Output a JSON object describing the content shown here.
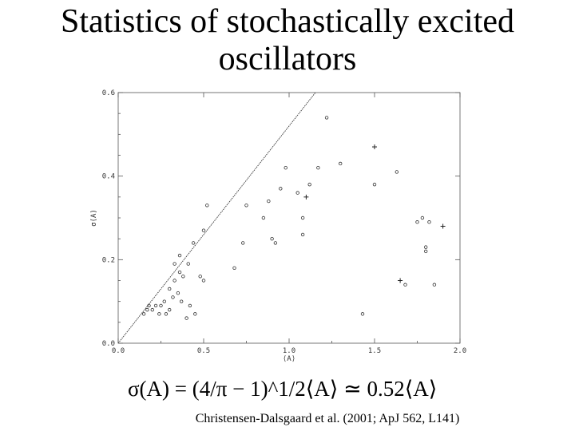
{
  "slide": {
    "title_line1": "Statistics of stochastically excited",
    "title_line2": "oscillators",
    "formula": "σ(A) = (4/π − 1)^1/2⟨A⟩ ≃ 0.52⟨A⟩",
    "citation": "Christensen-Dalsgaard et al. (2001; ApJ 562, L141)"
  },
  "chart_data": {
    "type": "scatter",
    "title": "",
    "xlabel": "⟨A⟩",
    "ylabel": "σ(A)",
    "xlim": [
      0,
      2
    ],
    "ylim": [
      0,
      0.6
    ],
    "x_ticks": [
      "0.0",
      "0.5",
      "1.0",
      "1.5",
      "2.0"
    ],
    "y_ticks": [
      "0.0",
      "0.2",
      "0.4",
      "0.6"
    ],
    "grid": false,
    "reference_line": {
      "slope": 0.52,
      "intercept": 0
    },
    "series": [
      {
        "marker": "open-circle",
        "points": [
          [
            0.15,
            0.07
          ],
          [
            0.17,
            0.08
          ],
          [
            0.18,
            0.09
          ],
          [
            0.2,
            0.08
          ],
          [
            0.22,
            0.09
          ],
          [
            0.24,
            0.07
          ],
          [
            0.25,
            0.09
          ],
          [
            0.27,
            0.1
          ],
          [
            0.28,
            0.07
          ],
          [
            0.3,
            0.08
          ],
          [
            0.32,
            0.11
          ],
          [
            0.3,
            0.13
          ],
          [
            0.33,
            0.15
          ],
          [
            0.35,
            0.12
          ],
          [
            0.36,
            0.17
          ],
          [
            0.38,
            0.16
          ],
          [
            0.37,
            0.1
          ],
          [
            0.4,
            0.06
          ],
          [
            0.42,
            0.09
          ],
          [
            0.45,
            0.07
          ],
          [
            0.48,
            0.16
          ],
          [
            0.5,
            0.15
          ],
          [
            0.41,
            0.19
          ],
          [
            0.44,
            0.24
          ],
          [
            0.33,
            0.19
          ],
          [
            0.36,
            0.21
          ],
          [
            0.5,
            0.27
          ],
          [
            0.52,
            0.33
          ],
          [
            0.68,
            0.18
          ],
          [
            0.73,
            0.24
          ],
          [
            0.75,
            0.33
          ],
          [
            0.85,
            0.3
          ],
          [
            0.88,
            0.34
          ],
          [
            0.9,
            0.25
          ],
          [
            0.95,
            0.37
          ],
          [
            0.98,
            0.42
          ],
          [
            0.92,
            0.24
          ],
          [
            1.05,
            0.36
          ],
          [
            1.08,
            0.26
          ],
          [
            1.08,
            0.3
          ],
          [
            1.12,
            0.38
          ],
          [
            1.17,
            0.42
          ],
          [
            1.22,
            0.54
          ],
          [
            1.3,
            0.43
          ],
          [
            1.43,
            0.07
          ],
          [
            1.5,
            0.38
          ],
          [
            1.63,
            0.41
          ],
          [
            1.75,
            0.29
          ],
          [
            1.78,
            0.3
          ],
          [
            1.8,
            0.23
          ],
          [
            1.82,
            0.29
          ],
          [
            1.85,
            0.14
          ],
          [
            1.68,
            0.14
          ],
          [
            1.8,
            0.22
          ]
        ]
      },
      {
        "marker": "plus",
        "points": [
          [
            1.1,
            0.35
          ],
          [
            1.5,
            0.47
          ],
          [
            1.65,
            0.15
          ],
          [
            1.9,
            0.28
          ]
        ]
      }
    ]
  }
}
